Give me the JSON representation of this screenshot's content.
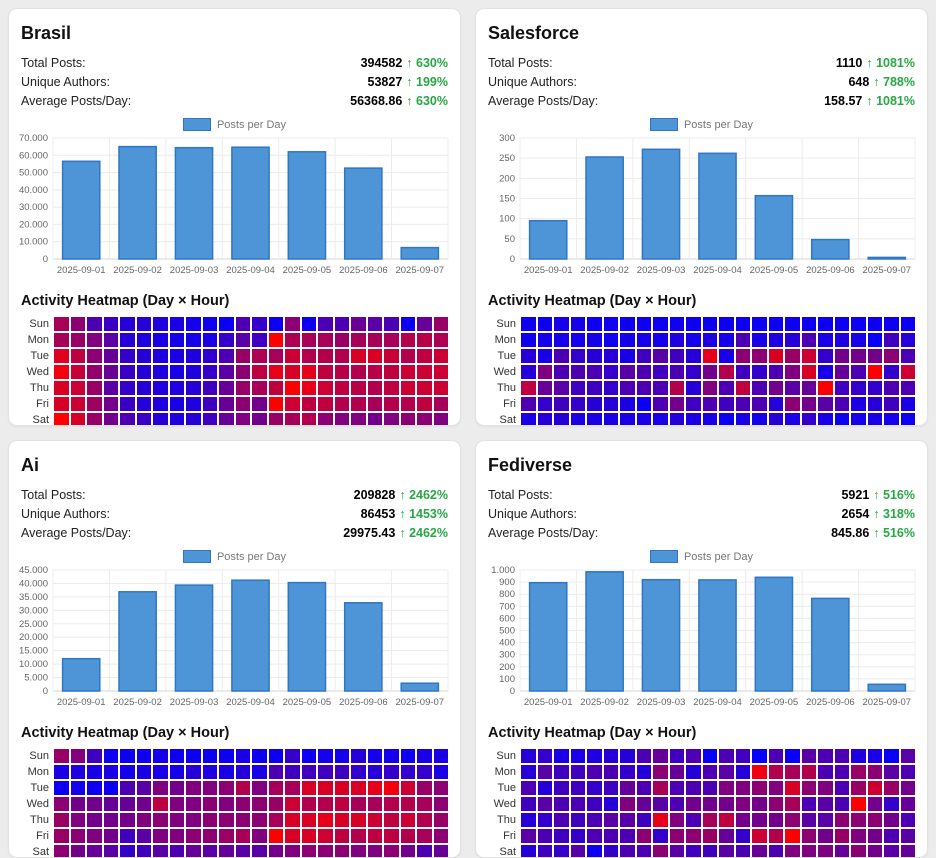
{
  "page": {
    "background": "#ececec",
    "card_background": "#ffffff"
  },
  "colors": {
    "bar_fill": "#4e95d8",
    "bar_border": "#2f76c4",
    "positive_green": "#28a745",
    "grid_line": "#ececec",
    "axis_line": "#d5d5d5",
    "tick_text": "#666666",
    "heat_low": "#0000ff",
    "heat_high": "#ff0000"
  },
  "shared": {
    "legend_label": "Posts per Day",
    "heatmap_title": "Activity Heatmap (Day × Hour)",
    "day_labels": [
      "Sun",
      "Mon",
      "Tue",
      "Wed",
      "Thu",
      "Fri",
      "Sat"
    ]
  },
  "panels": [
    {
      "title": "Brasil",
      "stats": [
        {
          "label": "Total Posts:",
          "value": "394582",
          "change": "↑ 630%"
        },
        {
          "label": "Unique Authors:",
          "value": "53827",
          "change": "↑ 199%"
        },
        {
          "label": "Average Posts/Day:",
          "value": "56368.86",
          "change": "↑ 630%"
        }
      ]
    },
    {
      "title": "Salesforce",
      "stats": [
        {
          "label": "Total Posts:",
          "value": "1110",
          "change": "↑ 1081%"
        },
        {
          "label": "Unique Authors:",
          "value": "648",
          "change": "↑ 788%"
        },
        {
          "label": "Average Posts/Day:",
          "value": "158.57",
          "change": "↑ 1081%"
        }
      ]
    },
    {
      "title": "Ai",
      "stats": [
        {
          "label": "Total Posts:",
          "value": "209828",
          "change": "↑ 2462%"
        },
        {
          "label": "Unique Authors:",
          "value": "86453",
          "change": "↑ 1453%"
        },
        {
          "label": "Average Posts/Day:",
          "value": "29975.43",
          "change": "↑ 2462%"
        }
      ]
    },
    {
      "title": "Fediverse",
      "stats": [
        {
          "label": "Total Posts:",
          "value": "5921",
          "change": "↑ 516%"
        },
        {
          "label": "Unique Authors:",
          "value": "2654",
          "change": "↑ 318%"
        },
        {
          "label": "Average Posts/Day:",
          "value": "845.86",
          "change": "↑ 516%"
        }
      ]
    }
  ],
  "chart_data": [
    {
      "panel": "Brasil",
      "type": "bar",
      "title": "Posts per Day",
      "categories": [
        "2025-09-01",
        "2025-09-02",
        "2025-09-03",
        "2025-09-04",
        "2025-09-05",
        "2025-09-06",
        "2025-09-07"
      ],
      "values": [
        56500,
        65000,
        64400,
        64700,
        62000,
        52600,
        6600
      ],
      "ylim": [
        0,
        70000
      ],
      "y_tick_labels": [
        "70.000",
        "60.000",
        "50.000",
        "40.000",
        "30.000",
        "20.000",
        "10.000",
        "0"
      ],
      "legend": "Posts per Day",
      "grid": true,
      "legend_position": "top"
    },
    {
      "panel": "Brasil",
      "type": "heatmap",
      "title": "Activity Heatmap (Day × Hour)",
      "rows": [
        "Sun",
        "Mon",
        "Tue",
        "Wed",
        "Thu",
        "Fri",
        "Sat"
      ],
      "columns": 24,
      "scale": "0=blue(low) 1=red(high)",
      "values": [
        [
          0.65,
          0.55,
          0.3,
          0.22,
          0.15,
          0.15,
          0.12,
          0.1,
          0.08,
          0.06,
          0.04,
          0.3,
          0.2,
          0.05,
          0.55,
          0.05,
          0.3,
          0.3,
          0.42,
          0.35,
          0.3,
          0.05,
          0.4,
          0.6
        ],
        [
          0.65,
          0.6,
          0.5,
          0.35,
          0.15,
          0.12,
          0.1,
          0.08,
          0.08,
          0.1,
          0.2,
          0.35,
          0.25,
          1.0,
          0.68,
          0.65,
          0.65,
          0.6,
          0.65,
          0.65,
          0.65,
          0.7,
          0.72,
          0.68
        ],
        [
          0.88,
          0.75,
          0.55,
          0.4,
          0.2,
          0.15,
          0.12,
          0.1,
          0.12,
          0.18,
          0.3,
          0.6,
          0.68,
          0.65,
          0.8,
          0.7,
          0.7,
          0.7,
          0.85,
          0.85,
          0.78,
          0.7,
          0.75,
          0.8
        ],
        [
          0.95,
          0.78,
          0.58,
          0.42,
          0.22,
          0.15,
          0.12,
          0.1,
          0.12,
          0.2,
          0.35,
          0.55,
          0.75,
          0.9,
          0.85,
          0.9,
          0.75,
          0.72,
          0.7,
          0.72,
          0.75,
          0.8,
          0.8,
          0.8
        ],
        [
          0.85,
          0.8,
          0.6,
          0.35,
          0.2,
          0.15,
          0.12,
          0.12,
          0.15,
          0.25,
          0.4,
          0.6,
          0.65,
          0.75,
          1.0,
          0.9,
          0.8,
          0.75,
          0.72,
          0.7,
          0.75,
          0.8,
          0.8,
          0.8
        ],
        [
          0.85,
          0.8,
          0.62,
          0.45,
          0.22,
          0.15,
          0.12,
          0.1,
          0.12,
          0.25,
          0.4,
          0.55,
          0.45,
          1.0,
          0.8,
          0.75,
          0.75,
          0.7,
          0.7,
          0.65,
          0.7,
          0.7,
          0.75,
          0.65
        ],
        [
          1.0,
          0.85,
          0.6,
          0.45,
          0.3,
          0.22,
          0.15,
          0.12,
          0.15,
          0.25,
          0.4,
          0.5,
          0.45,
          0.6,
          0.65,
          0.7,
          0.55,
          0.5,
          0.5,
          0.45,
          0.5,
          0.55,
          0.55,
          0.5
        ]
      ]
    },
    {
      "panel": "Salesforce",
      "type": "bar",
      "title": "Posts per Day",
      "categories": [
        "2025-09-01",
        "2025-09-02",
        "2025-09-03",
        "2025-09-04",
        "2025-09-05",
        "2025-09-06",
        "2025-09-07"
      ],
      "values": [
        95,
        253,
        272,
        262,
        157,
        48,
        4
      ],
      "ylim": [
        0,
        300
      ],
      "y_tick_labels": [
        "300",
        "250",
        "200",
        "150",
        "100",
        "50",
        "0"
      ],
      "legend": "Posts per Day",
      "grid": true,
      "legend_position": "top"
    },
    {
      "panel": "Salesforce",
      "type": "heatmap",
      "title": "Activity Heatmap (Day × Hour)",
      "rows": [
        "Sun",
        "Mon",
        "Tue",
        "Wed",
        "Thu",
        "Fri",
        "Sat"
      ],
      "columns": 24,
      "scale": "0=blue(low) 1=red(high)",
      "values": [
        [
          0.05,
          0.05,
          0.08,
          0.08,
          0.05,
          0.06,
          0.05,
          0.05,
          0.05,
          0.05,
          0.05,
          0.05,
          0.05,
          0.05,
          0.05,
          0.05,
          0.05,
          0.05,
          0.05,
          0.05,
          0.05,
          0.05,
          0.05,
          0.05
        ],
        [
          0.05,
          0.08,
          0.08,
          0.08,
          0.08,
          0.06,
          0.08,
          0.08,
          0.08,
          0.12,
          0.08,
          0.12,
          0.08,
          0.3,
          0.1,
          0.12,
          0.15,
          0.3,
          0.1,
          0.12,
          0.1,
          0.03,
          0.25,
          0.15
        ],
        [
          0.15,
          0.1,
          0.3,
          0.2,
          0.15,
          0.15,
          0.1,
          0.25,
          0.35,
          0.25,
          0.15,
          0.9,
          0.1,
          0.55,
          0.55,
          0.85,
          0.6,
          0.8,
          0.2,
          0.45,
          0.45,
          0.45,
          0.55,
          0.3
        ],
        [
          0.15,
          0.5,
          0.3,
          0.3,
          0.3,
          0.2,
          0.35,
          0.3,
          0.25,
          0.3,
          0.2,
          0.45,
          0.7,
          0.25,
          0.2,
          0.3,
          0.5,
          0.85,
          0.1,
          0.4,
          0.3,
          1.0,
          0.2,
          0.8
        ],
        [
          0.75,
          0.4,
          0.35,
          0.25,
          0.25,
          0.2,
          0.3,
          0.3,
          0.3,
          0.7,
          0.15,
          0.5,
          0.3,
          0.75,
          0.3,
          0.45,
          0.35,
          0.4,
          1.0,
          0.25,
          0.2,
          0.2,
          0.3,
          0.3
        ],
        [
          0.3,
          0.2,
          0.25,
          0.2,
          0.15,
          0.15,
          0.1,
          0.05,
          0.3,
          0.45,
          0.25,
          0.3,
          0.25,
          0.3,
          0.3,
          0.15,
          0.55,
          0.45,
          0.35,
          0.3,
          0.1,
          0.15,
          0.25,
          0.1
        ],
        [
          0.1,
          0.15,
          0.15,
          0.1,
          0.1,
          0.1,
          0.1,
          0.1,
          0.1,
          0.15,
          0.1,
          0.1,
          0.05,
          0.1,
          0.08,
          0.15,
          0.1,
          0.2,
          0.1,
          0.05,
          0.08,
          0.1,
          0.08,
          0.05
        ]
      ]
    },
    {
      "panel": "Ai",
      "type": "bar",
      "title": "Posts per Day",
      "categories": [
        "2025-09-01",
        "2025-09-02",
        "2025-09-03",
        "2025-09-04",
        "2025-09-05",
        "2025-09-06",
        "2025-09-07"
      ],
      "values": [
        12000,
        36900,
        39400,
        41200,
        40300,
        32800,
        2900
      ],
      "ylim": [
        0,
        45000
      ],
      "y_tick_labels": [
        "45.000",
        "40.000",
        "35.000",
        "30.000",
        "25.000",
        "20.000",
        "15.000",
        "10.000",
        "5.000",
        "0"
      ],
      "legend": "Posts per Day",
      "grid": true,
      "legend_position": "top"
    },
    {
      "panel": "Ai",
      "type": "heatmap",
      "title": "Activity Heatmap (Day × Hour)",
      "rows": [
        "Sun",
        "Mon",
        "Tue",
        "Wed",
        "Thu",
        "Fri",
        "Sat"
      ],
      "columns": 24,
      "scale": "0=blue(low) 1=red(high)",
      "values": [
        [
          0.6,
          0.5,
          0.25,
          0.05,
          0.05,
          0.05,
          0.08,
          0.05,
          0.05,
          0.05,
          0.05,
          0.1,
          0.05,
          0.05,
          0.2,
          0.05,
          0.08,
          0.08,
          0.15,
          0.08,
          0.08,
          0.05,
          0.1,
          0.1
        ],
        [
          0.1,
          0.12,
          0.1,
          0.1,
          0.08,
          0.1,
          0.1,
          0.08,
          0.15,
          0.12,
          0.1,
          0.15,
          0.1,
          0.3,
          0.25,
          0.25,
          0.25,
          0.25,
          0.2,
          0.15,
          0.2,
          0.2,
          0.2,
          0.1
        ],
        [
          0.05,
          0.08,
          0.05,
          0.05,
          0.3,
          0.35,
          0.5,
          0.45,
          0.5,
          0.5,
          0.55,
          0.7,
          0.5,
          0.65,
          0.65,
          0.85,
          0.85,
          0.85,
          0.85,
          0.9,
          0.95,
          0.8,
          0.6,
          0.55
        ],
        [
          0.55,
          0.45,
          0.45,
          0.4,
          0.4,
          0.45,
          0.75,
          0.5,
          0.5,
          0.55,
          0.5,
          0.55,
          0.55,
          0.6,
          0.8,
          0.7,
          0.7,
          0.75,
          0.65,
          0.65,
          0.7,
          0.7,
          0.65,
          0.55
        ],
        [
          0.6,
          0.5,
          0.45,
          0.45,
          0.45,
          0.5,
          0.55,
          0.5,
          0.5,
          0.55,
          0.55,
          0.55,
          0.55,
          0.65,
          0.85,
          0.85,
          0.9,
          0.85,
          0.85,
          0.8,
          0.75,
          0.8,
          0.7,
          0.6
        ],
        [
          0.6,
          0.55,
          0.5,
          0.45,
          0.25,
          0.35,
          0.5,
          0.5,
          0.55,
          0.55,
          0.6,
          0.65,
          0.5,
          1.0,
          0.85,
          0.85,
          0.8,
          0.75,
          0.7,
          0.75,
          0.75,
          0.7,
          0.65,
          0.55
        ],
        [
          0.55,
          0.45,
          0.4,
          0.35,
          0.2,
          0.25,
          0.35,
          0.3,
          0.4,
          0.35,
          0.4,
          0.35,
          0.35,
          0.45,
          0.5,
          0.55,
          0.55,
          0.55,
          0.5,
          0.5,
          0.55,
          0.45,
          0.3,
          0.4
        ]
      ]
    },
    {
      "panel": "Fediverse",
      "type": "bar",
      "title": "Posts per Day",
      "categories": [
        "2025-09-01",
        "2025-09-02",
        "2025-09-03",
        "2025-09-04",
        "2025-09-05",
        "2025-09-06",
        "2025-09-07"
      ],
      "values": [
        895,
        985,
        920,
        918,
        940,
        765,
        55
      ],
      "ylim": [
        0,
        1000
      ],
      "y_tick_labels": [
        "1.000",
        "900",
        "800",
        "700",
        "600",
        "500",
        "400",
        "300",
        "200",
        "100",
        "0"
      ],
      "legend": "Posts per Day",
      "grid": true,
      "legend_position": "top"
    },
    {
      "panel": "Fediverse",
      "type": "heatmap",
      "title": "Activity Heatmap (Day × Hour)",
      "rows": [
        "Sun",
        "Mon",
        "Tue",
        "Wed",
        "Thu",
        "Fri",
        "Sat"
      ],
      "columns": 24,
      "scale": "0=blue(low) 1=red(high)",
      "values": [
        [
          0.15,
          0.2,
          0.1,
          0.1,
          0.12,
          0.15,
          0.15,
          0.3,
          0.4,
          0.25,
          0.3,
          0.03,
          0.3,
          0.25,
          0.03,
          0.3,
          0.03,
          0.35,
          0.3,
          0.3,
          0.12,
          0.1,
          0.03,
          0.35
        ],
        [
          0.15,
          0.35,
          0.25,
          0.25,
          0.3,
          0.3,
          0.2,
          0.15,
          0.55,
          0.4,
          0.15,
          0.3,
          0.35,
          0.15,
          0.95,
          0.7,
          0.65,
          0.7,
          0.3,
          0.3,
          0.6,
          0.55,
          0.35,
          0.3
        ],
        [
          0.3,
          0.15,
          0.25,
          0.25,
          0.2,
          0.25,
          0.4,
          0.3,
          0.65,
          0.3,
          0.3,
          0.3,
          0.5,
          0.5,
          0.55,
          0.5,
          0.85,
          0.55,
          0.5,
          0.3,
          0.6,
          0.8,
          0.6,
          0.45
        ],
        [
          0.25,
          0.35,
          0.3,
          0.3,
          0.25,
          0.15,
          0.5,
          0.4,
          0.35,
          0.3,
          0.45,
          0.45,
          0.45,
          0.5,
          0.45,
          0.55,
          0.65,
          0.3,
          0.35,
          0.3,
          1.0,
          0.45,
          0.2,
          0.4
        ],
        [
          0.15,
          0.2,
          0.3,
          0.25,
          0.3,
          0.35,
          0.35,
          0.25,
          0.9,
          0.5,
          0.3,
          0.65,
          0.75,
          0.45,
          0.45,
          0.45,
          0.55,
          0.35,
          0.35,
          0.55,
          0.55,
          0.55,
          0.45,
          0.3
        ],
        [
          0.35,
          0.3,
          0.25,
          0.2,
          0.3,
          0.3,
          0.3,
          0.55,
          0.2,
          0.55,
          0.55,
          0.6,
          0.4,
          0.2,
          0.8,
          0.7,
          1.0,
          0.55,
          0.45,
          0.6,
          0.5,
          0.45,
          0.3,
          0.35
        ],
        [
          0.15,
          0.25,
          0.2,
          0.35,
          0.05,
          0.2,
          0.3,
          0.3,
          0.55,
          0.35,
          0.25,
          0.25,
          0.35,
          0.3,
          0.4,
          0.3,
          0.5,
          0.5,
          0.5,
          0.4,
          0.55,
          0.45,
          0.35,
          0.4
        ]
      ]
    }
  ]
}
